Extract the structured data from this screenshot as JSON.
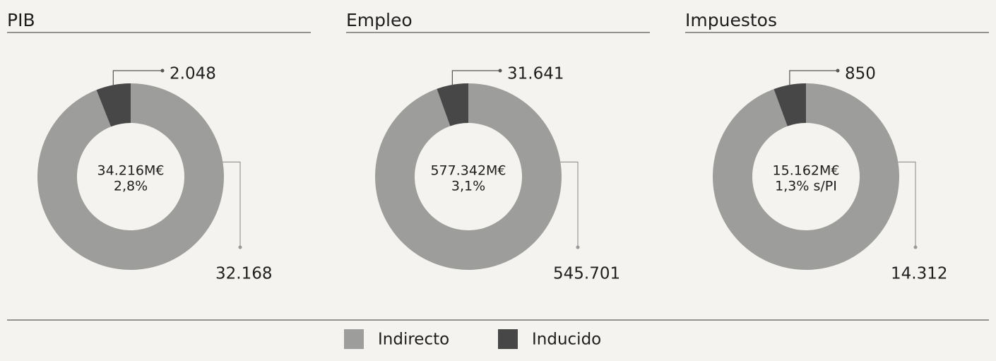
{
  "chart_data": [
    {
      "type": "pie",
      "title": "PIB",
      "values": [
        32168,
        2048
      ],
      "value_labels": [
        "32.168",
        "2.048"
      ],
      "center_text": [
        "34.216M€",
        "2,8%"
      ]
    },
    {
      "type": "pie",
      "title": "Empleo",
      "values": [
        545701,
        31641
      ],
      "value_labels": [
        "545.701",
        "31.641"
      ],
      "center_text": [
        "577.342M€",
        "3,1%"
      ]
    },
    {
      "type": "pie",
      "title": "Impuestos",
      "values": [
        14312,
        850
      ],
      "value_labels": [
        "14.312",
        "850"
      ],
      "center_text": [
        "15.162M€",
        "1,3% s/PI"
      ]
    }
  ],
  "legend": {
    "items": [
      {
        "name": "Indirecto",
        "color": "#9d9d9b"
      },
      {
        "name": "Inducido",
        "color": "#474747"
      }
    ]
  }
}
